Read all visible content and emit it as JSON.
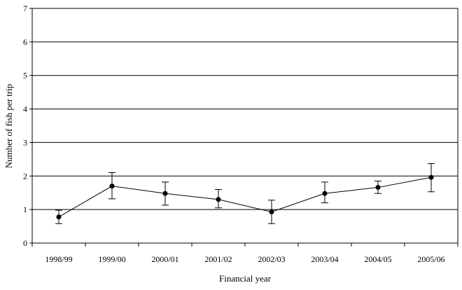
{
  "chart_data": {
    "type": "line",
    "title": "",
    "xlabel": "Financial year",
    "ylabel": "Number of fish per trip",
    "categories": [
      "1998/99",
      "1999/00",
      "2000/01",
      "2001/02",
      "2002/03",
      "2003/04",
      "2004/05",
      "2005/06"
    ],
    "series": [
      {
        "values": [
          0.78,
          1.7,
          1.48,
          1.3,
          0.93,
          1.48,
          1.66,
          1.96
        ],
        "error_low": [
          0.58,
          1.32,
          1.13,
          1.05,
          0.58,
          1.2,
          1.48,
          1.53
        ],
        "error_high": [
          0.98,
          2.1,
          1.82,
          1.6,
          1.28,
          1.82,
          1.85,
          2.37
        ]
      }
    ],
    "ylim": [
      0,
      7
    ],
    "yticks": [
      "0",
      "1",
      "2",
      "3",
      "4",
      "5",
      "6",
      "7"
    ],
    "grid": true,
    "legend": "none",
    "colors": {
      "line": "#000000",
      "marker": "#000000",
      "grid": "#000000",
      "error_bar": "#000000"
    }
  }
}
